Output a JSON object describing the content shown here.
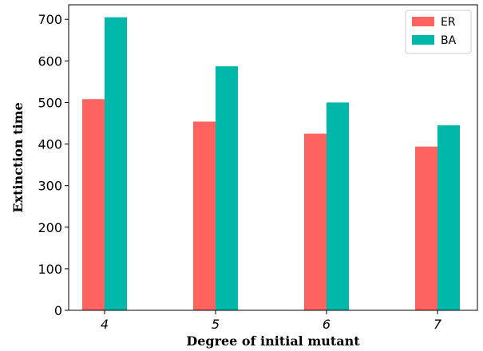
{
  "chart_data": {
    "type": "bar",
    "categories": [
      "4",
      "5",
      "6",
      "7"
    ],
    "series": [
      {
        "name": "ER",
        "values": [
          508,
          454,
          425,
          394
        ],
        "color": "#ff6360"
      },
      {
        "name": "BA",
        "values": [
          705,
          587,
          500,
          445
        ],
        "color": "#00b8a9"
      }
    ],
    "xlabel": "Degree of initial mutant",
    "ylabel": "Extinction time",
    "ylim": [
      0,
      735
    ],
    "yticks": [
      0,
      100,
      200,
      300,
      400,
      500,
      600,
      700
    ],
    "grid": false,
    "legend_position": "top-right"
  }
}
